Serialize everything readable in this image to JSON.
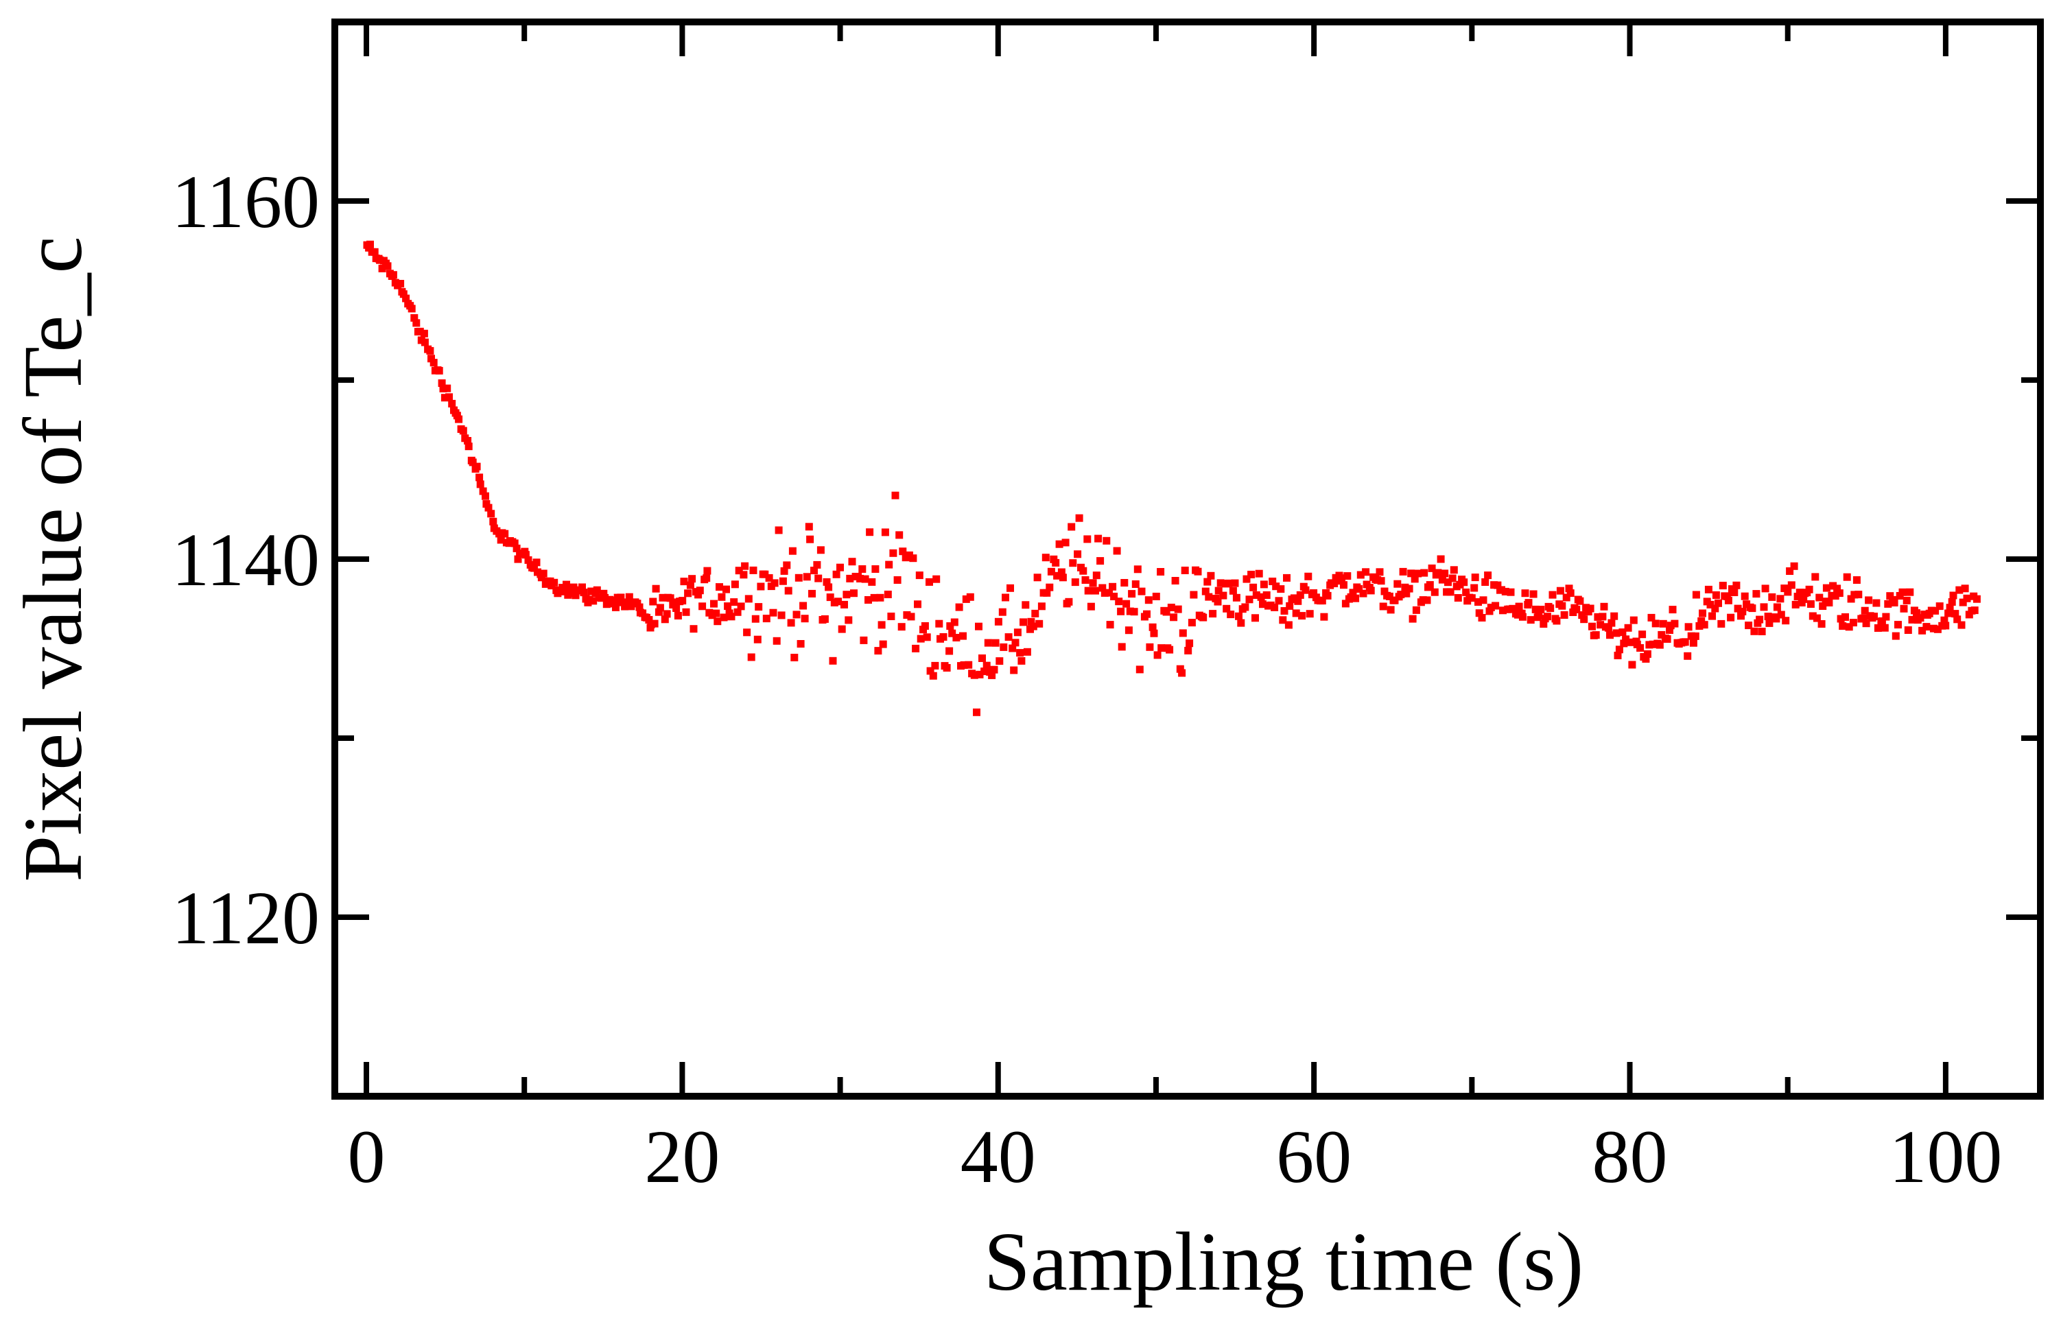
{
  "chart_data": {
    "type": "scatter",
    "title": "",
    "xlabel": "Sampling time (s)",
    "ylabel": "Pixel value of Te_c",
    "xlim": [
      -2,
      106
    ],
    "ylim": [
      1110,
      1170
    ],
    "xticks_major": [
      0,
      20,
      40,
      60,
      80,
      100
    ],
    "xticks_minor": [
      10,
      30,
      50,
      70,
      90
    ],
    "yticks_major": [
      1120,
      1140,
      1160
    ],
    "yticks_minor": [
      1130,
      1150
    ],
    "xtick_labels": [
      "0",
      "20",
      "40",
      "60",
      "80",
      "100"
    ],
    "ytick_labels": [
      "1120",
      "1140",
      "1160"
    ],
    "grid": false,
    "legend": "none",
    "series": [
      {
        "name": "Te_c",
        "color": "#ff0000",
        "marker": "square",
        "sampling_interval_s": 0.125,
        "segments": [
          {
            "t": [
              0,
              2,
              4,
              6,
              8,
              10,
              12,
              14,
              17,
              18
            ],
            "y": [
              1157.5,
              1155.5,
              1151.5,
              1147.5,
              1142,
              1140,
              1138.5,
              1138,
              1137.5,
              1136.5
            ]
          },
          {
            "t": [
              18,
              20,
              22,
              24,
              26,
              28,
              30,
              32,
              34,
              35,
              37,
              38,
              40,
              42,
              44,
              46,
              48,
              50,
              52,
              54,
              56,
              58,
              60,
              62,
              64,
              66,
              68,
              70,
              72,
              74,
              76,
              78,
              80,
              82,
              84,
              86,
              88,
              90,
              92,
              94,
              96,
              98,
              100,
              102
            ],
            "y": [
              1136.5,
              1137.5,
              1138,
              1138,
              1138,
              1138.5,
              1138,
              1138.5,
              1139,
              1137,
              1135.5,
              1135,
              1135,
              1136,
              1139.5,
              1139.5,
              1138,
              1136,
              1137,
              1138,
              1138,
              1137.5,
              1138,
              1138.5,
              1138.5,
              1138,
              1139,
              1138,
              1137.5,
              1137,
              1137,
              1136.5,
              1135,
              1135.5,
              1136,
              1137.5,
              1137,
              1138,
              1137.5,
              1137.5,
              1137,
              1137,
              1137,
              1137.5
            ]
          }
        ],
        "scatter_band": [
          {
            "t": 14,
            "spread": 1.0
          },
          {
            "t": 20,
            "spread": 1.0
          },
          {
            "t": 26,
            "spread": 2.6
          },
          {
            "t": 34,
            "spread": 3.0
          },
          {
            "t": 38,
            "spread": 2.4
          },
          {
            "t": 42,
            "spread": 2.0
          },
          {
            "t": 46,
            "spread": 2.4
          },
          {
            "t": 52,
            "spread": 2.6
          },
          {
            "t": 56,
            "spread": 1.2
          },
          {
            "t": 66,
            "spread": 1.0
          },
          {
            "t": 80,
            "spread": 1.1
          },
          {
            "t": 92,
            "spread": 1.4
          },
          {
            "t": 102,
            "spread": 0.8
          }
        ]
      }
    ]
  }
}
